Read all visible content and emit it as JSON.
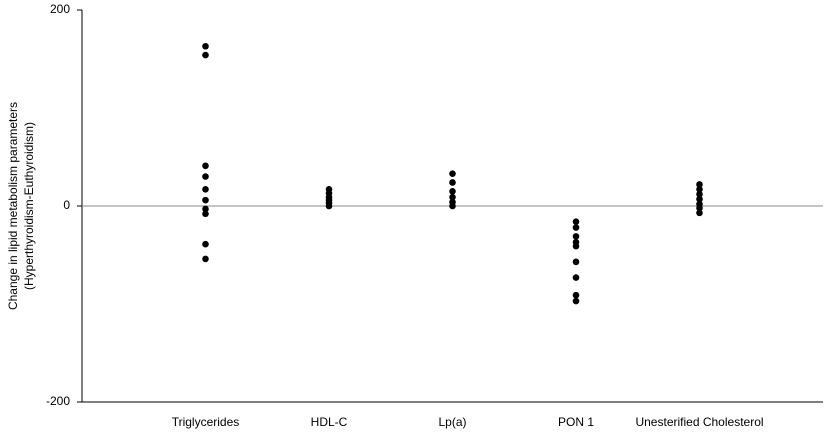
{
  "chart_data": {
    "type": "strip",
    "ylabel": [
      "Change in lipid metabolism parameters",
      "(Hyperthyroidism-Euthyroidism)"
    ],
    "categories": [
      "Triglycerides",
      "HDL-C",
      "Lp(a)",
      "PON 1",
      "Unesterified Cholesterol"
    ],
    "values": [
      [
        163,
        154,
        41,
        30,
        17,
        6,
        -3,
        -8,
        -39,
        -54
      ],
      [
        17,
        13,
        9,
        6,
        3,
        0
      ],
      [
        33,
        24,
        15,
        9,
        4,
        0
      ],
      [
        -16,
        -22,
        -31,
        -37,
        -41,
        -57,
        -73,
        -91,
        -97
      ],
      [
        22,
        17,
        12,
        7,
        2,
        -2,
        -7
      ]
    ],
    "color": "#000000",
    "ylim": [
      -200,
      200
    ],
    "yticks": [
      -200,
      0,
      200
    ],
    "zero_line": true
  }
}
